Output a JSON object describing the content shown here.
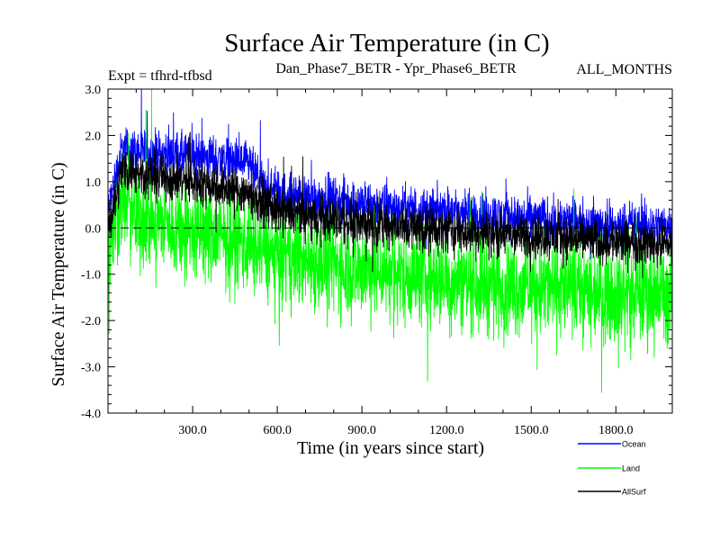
{
  "chart_data": {
    "type": "line",
    "title": "Surface Air Temperature (in C)",
    "subtitle": "Dan_Phase7_BETR - Ypr_Phase6_BETR",
    "experiment": "Expt = tfhrd-tfbsd",
    "months": "ALL_MONTHS",
    "xlabel": "Time (in years since start)",
    "ylabel": "Surface Air Temperature (in C)",
    "xlim": [
      0,
      2000
    ],
    "ylim": [
      -4,
      3
    ],
    "xticks": [
      300,
      600,
      900,
      1200,
      1500,
      1800
    ],
    "xtick_labels": [
      "300.0",
      "600.0",
      "900.0",
      "1200.0",
      "1500.0",
      "1800.0"
    ],
    "yticks": [
      3,
      2,
      1,
      0,
      -1,
      -2,
      -3,
      -4
    ],
    "ytick_labels": [
      "3.0",
      "2.0",
      "1.0",
      "0.0",
      "-1.0",
      "-2.0",
      "-3.0",
      "-4.0"
    ],
    "zero_line": true,
    "grid": false,
    "series": [
      {
        "name": "Ocean",
        "color": "#0000ff",
        "x": [
          0,
          20,
          50,
          100,
          200,
          300,
          400,
          500,
          520,
          560,
          600,
          800,
          1000,
          1200,
          1400,
          1600,
          1800,
          2000
        ],
        "mean": [
          0.3,
          0.9,
          1.7,
          1.65,
          1.6,
          1.55,
          1.5,
          1.35,
          1.15,
          0.8,
          0.75,
          0.6,
          0.45,
          0.35,
          0.25,
          0.15,
          0.05,
          0.05
        ],
        "spread": 0.35
      },
      {
        "name": "Land",
        "color": "#00ff00",
        "x": [
          0,
          20,
          50,
          100,
          200,
          300,
          400,
          500,
          600,
          800,
          1000,
          1200,
          1400,
          1600,
          1800,
          2000
        ],
        "mean": [
          -0.6,
          -0.1,
          0.7,
          0.2,
          0.1,
          -0.1,
          -0.2,
          -0.35,
          -0.6,
          -0.8,
          -0.95,
          -1.1,
          -1.25,
          -1.3,
          -1.4,
          -1.45
        ],
        "spread": 0.75
      },
      {
        "name": "AllSurf",
        "color": "#000000",
        "x": [
          0,
          20,
          50,
          100,
          200,
          300,
          400,
          500,
          600,
          800,
          1000,
          1200,
          1400,
          1600,
          1800,
          2000
        ],
        "mean": [
          0.0,
          0.5,
          1.3,
          1.2,
          1.1,
          1.0,
          0.9,
          0.75,
          0.35,
          0.2,
          0.05,
          -0.05,
          -0.15,
          -0.2,
          -0.3,
          -0.35
        ],
        "spread": 0.35
      }
    ],
    "legend": [
      {
        "label": "Ocean",
        "color": "#0000ff"
      },
      {
        "label": "Land",
        "color": "#00ff00"
      },
      {
        "label": "AllSurf",
        "color": "#000000"
      }
    ]
  }
}
